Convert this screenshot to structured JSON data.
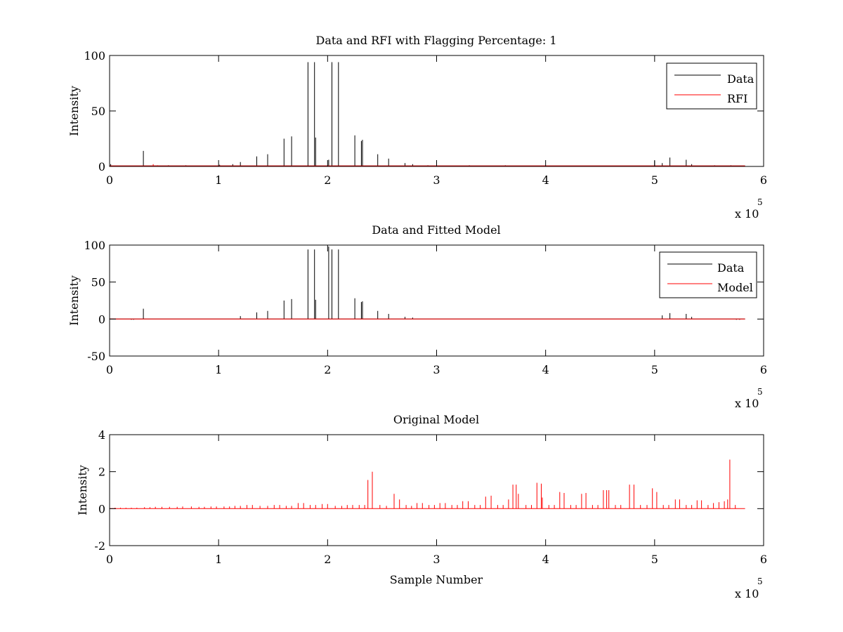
{
  "chart_data": [
    {
      "type": "line",
      "title": "Data and RFI with Flagging Percentage: 1",
      "xlabel": "",
      "ylabel": "Intensity",
      "xlim": [
        0,
        600000
      ],
      "ylim": [
        0,
        100
      ],
      "xticks": [
        0,
        1,
        2,
        3,
        4,
        5,
        6
      ],
      "yticks": [
        0,
        50,
        100
      ],
      "x_exponent_label": "x 10",
      "x_exponent_power": "5",
      "legend": "top-right",
      "series": [
        {
          "name": "Data",
          "color": "#000000",
          "baseline": 0.5,
          "x_end": 583000,
          "spikes": [
            [
              1000,
              2
            ],
            [
              31000,
              14
            ],
            [
              54000,
              1
            ],
            [
              70000,
              1
            ],
            [
              101000,
              1.5
            ],
            [
              113000,
              2
            ],
            [
              120000,
              4
            ],
            [
              135000,
              9
            ],
            [
              145000,
              11
            ],
            [
              160000,
              25
            ],
            [
              167000,
              27
            ],
            [
              182000,
              94
            ],
            [
              188000,
              94
            ],
            [
              189000,
              26
            ],
            [
              201000,
              6
            ],
            [
              204000,
              94
            ],
            [
              210000,
              94
            ],
            [
              225000,
              28
            ],
            [
              231000,
              23
            ],
            [
              232000,
              24
            ],
            [
              246000,
              11
            ],
            [
              256000,
              7
            ],
            [
              271000,
              3
            ],
            [
              278000,
              2
            ],
            [
              292000,
              1
            ],
            [
              330000,
              1
            ],
            [
              340000,
              0.8
            ],
            [
              363000,
              1
            ],
            [
              500000,
              5
            ],
            [
              507000,
              3
            ],
            [
              514000,
              8
            ],
            [
              529000,
              6
            ],
            [
              534000,
              2
            ],
            [
              555000,
              1
            ],
            [
              570000,
              1
            ]
          ]
        },
        {
          "name": "RFI",
          "color": "#ff0000",
          "baseline": 0.5,
          "x_end": 583000,
          "spikes": [
            [
              40000,
              2
            ],
            [
              44000,
              1
            ]
          ]
        }
      ]
    },
    {
      "type": "line",
      "title": "Data and Fitted Model",
      "xlabel": "",
      "ylabel": "Intensity",
      "xlim": [
        0,
        600000
      ],
      "ylim": [
        -50,
        100
      ],
      "xticks": [
        0,
        1,
        2,
        3,
        4,
        5,
        6
      ],
      "yticks": [
        -50,
        0,
        50,
        100
      ],
      "x_exponent_label": "x 10",
      "x_exponent_power": "5",
      "legend": "top-right",
      "series": [
        {
          "name": "Data",
          "color": "#000000",
          "baseline": 0,
          "x_end": 583000,
          "spikes": [
            [
              20000,
              -1
            ],
            [
              22000,
              -1
            ],
            [
              31000,
              14
            ],
            [
              120000,
              4
            ],
            [
              135000,
              9
            ],
            [
              145000,
              11
            ],
            [
              160000,
              25
            ],
            [
              167000,
              27
            ],
            [
              182000,
              94
            ],
            [
              188000,
              94
            ],
            [
              189000,
              26
            ],
            [
              201000,
              98
            ],
            [
              204000,
              94
            ],
            [
              210000,
              94
            ],
            [
              225000,
              28
            ],
            [
              231000,
              23
            ],
            [
              232000,
              24
            ],
            [
              246000,
              11
            ],
            [
              256000,
              7
            ],
            [
              271000,
              3
            ],
            [
              278000,
              2
            ],
            [
              507000,
              5
            ],
            [
              514000,
              8
            ],
            [
              529000,
              7
            ],
            [
              534000,
              3
            ],
            [
              575000,
              -1
            ],
            [
              578000,
              -1
            ]
          ]
        },
        {
          "name": "Model",
          "color": "#ff0000",
          "baseline": 0,
          "x_end": 583000,
          "spikes": []
        }
      ]
    },
    {
      "type": "line",
      "title": "Original Model",
      "xlabel": "Sample Number",
      "ylabel": "Intensity",
      "xlim": [
        0,
        600000
      ],
      "ylim": [
        -2,
        4
      ],
      "xticks": [
        0,
        1,
        2,
        3,
        4,
        5,
        6
      ],
      "yticks": [
        -2,
        0,
        2,
        4
      ],
      "x_exponent_label": "x 10",
      "x_exponent_power": "5",
      "legend": "none",
      "series": [
        {
          "color": "#ff0000",
          "baseline": 0,
          "x_end": 583000,
          "spikes": [
            [
              5000,
              0.05
            ],
            [
              10000,
              0.05
            ],
            [
              15000,
              0.05
            ],
            [
              20000,
              0.05
            ],
            [
              25000,
              0.05
            ],
            [
              32000,
              0.08
            ],
            [
              37000,
              0.08
            ],
            [
              42000,
              0.1
            ],
            [
              48000,
              0.1
            ],
            [
              55000,
              0.1
            ],
            [
              62000,
              0.1
            ],
            [
              67000,
              0.12
            ],
            [
              75000,
              0.12
            ],
            [
              82000,
              0.1
            ],
            [
              87000,
              0.1
            ],
            [
              93000,
              0.12
            ],
            [
              98000,
              0.12
            ],
            [
              105000,
              0.12
            ],
            [
              110000,
              0.12
            ],
            [
              115000,
              0.15
            ],
            [
              120000,
              0.15
            ],
            [
              126000,
              0.2
            ],
            [
              131000,
              0.2
            ],
            [
              138000,
              0.15
            ],
            [
              145000,
              0.15
            ],
            [
              151000,
              0.2
            ],
            [
              156000,
              0.2
            ],
            [
              162000,
              0.15
            ],
            [
              167000,
              0.15
            ],
            [
              173000,
              0.3
            ],
            [
              178000,
              0.3
            ],
            [
              184000,
              0.2
            ],
            [
              189000,
              0.2
            ],
            [
              195000,
              0.25
            ],
            [
              200000,
              0.25
            ],
            [
              207000,
              0.15
            ],
            [
              213000,
              0.15
            ],
            [
              218000,
              0.2
            ],
            [
              223000,
              0.2
            ],
            [
              229000,
              0.2
            ],
            [
              234000,
              0.2
            ],
            [
              237000,
              1.55
            ],
            [
              241000,
              2.0
            ],
            [
              248000,
              0.2
            ],
            [
              254000,
              0.15
            ],
            [
              261000,
              0.8
            ],
            [
              266000,
              0.5
            ],
            [
              272000,
              0.2
            ],
            [
              277000,
              0.15
            ],
            [
              282000,
              0.3
            ],
            [
              287000,
              0.3
            ],
            [
              293000,
              0.2
            ],
            [
              298000,
              0.2
            ],
            [
              303000,
              0.3
            ],
            [
              308000,
              0.3
            ],
            [
              314000,
              0.2
            ],
            [
              319000,
              0.2
            ],
            [
              324000,
              0.4
            ],
            [
              329000,
              0.4
            ],
            [
              335000,
              0.2
            ],
            [
              340000,
              0.2
            ],
            [
              345000,
              0.65
            ],
            [
              350000,
              0.7
            ],
            [
              356000,
              0.2
            ],
            [
              361000,
              0.2
            ],
            [
              366000,
              0.5
            ],
            [
              370000,
              1.3
            ],
            [
              373000,
              1.3
            ],
            [
              375000,
              0.8
            ],
            [
              382000,
              0.2
            ],
            [
              387000,
              0.2
            ],
            [
              392000,
              1.4
            ],
            [
              396000,
              1.35
            ],
            [
              397000,
              0.6
            ],
            [
              403000,
              0.2
            ],
            [
              408000,
              0.2
            ],
            [
              413000,
              0.9
            ],
            [
              417000,
              0.85
            ],
            [
              423000,
              0.2
            ],
            [
              428000,
              0.2
            ],
            [
              433000,
              0.8
            ],
            [
              437000,
              0.85
            ],
            [
              443000,
              0.2
            ],
            [
              448000,
              0.2
            ],
            [
              453000,
              1.0
            ],
            [
              456000,
              1.0
            ],
            [
              458000,
              1.0
            ],
            [
              464000,
              0.2
            ],
            [
              469000,
              0.2
            ],
            [
              477000,
              1.3
            ],
            [
              481000,
              1.3
            ],
            [
              487000,
              0.2
            ],
            [
              493000,
              0.2
            ],
            [
              498000,
              1.1
            ],
            [
              502000,
              0.9
            ],
            [
              508000,
              0.2
            ],
            [
              513000,
              0.2
            ],
            [
              519000,
              0.5
            ],
            [
              523000,
              0.5
            ],
            [
              529000,
              0.2
            ],
            [
              534000,
              0.2
            ],
            [
              539000,
              0.45
            ],
            [
              543000,
              0.45
            ],
            [
              549000,
              0.2
            ],
            [
              554000,
              0.3
            ],
            [
              559000,
              0.35
            ],
            [
              564000,
              0.4
            ],
            [
              567000,
              0.5
            ],
            [
              569000,
              2.65
            ],
            [
              574000,
              0.2
            ]
          ]
        }
      ]
    }
  ]
}
